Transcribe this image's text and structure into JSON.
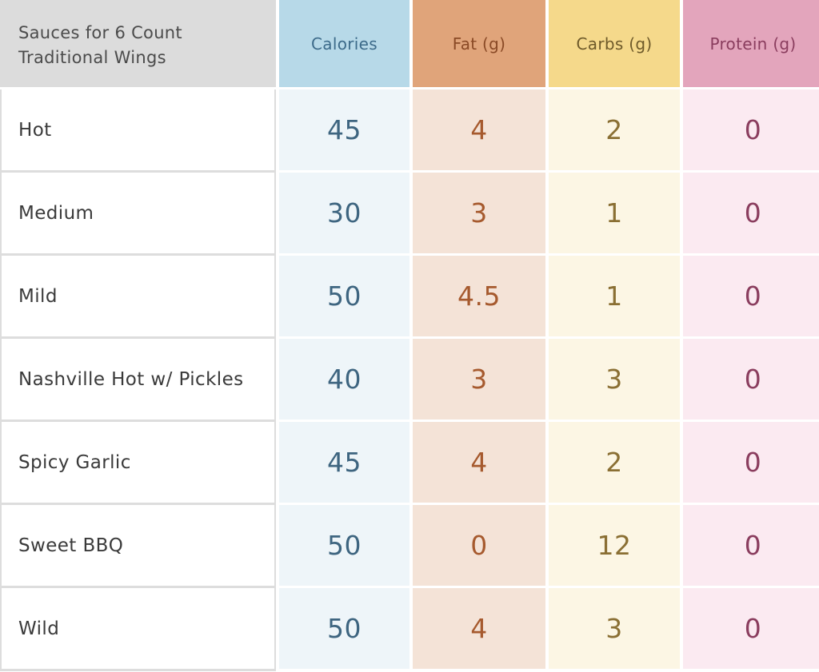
{
  "table": {
    "headers": {
      "sauce": "Sauces for 6 Count Traditional Wings",
      "calories": "Calories",
      "fat": "Fat (g)",
      "carbs": "Carbs (g)",
      "protein": "Protein (g)"
    },
    "colors": {
      "calories_header": "#b7d9e8",
      "fat_header": "#e0a47a",
      "carbs_header": "#f5d98b",
      "protein_header": "#e3a5bc",
      "sauce_header": "#dcdcdc"
    },
    "rows": [
      {
        "sauce": "Hot",
        "calories": "45",
        "fat": "4",
        "carbs": "2",
        "protein": "0"
      },
      {
        "sauce": "Medium",
        "calories": "30",
        "fat": "3",
        "carbs": "1",
        "protein": "0"
      },
      {
        "sauce": "Mild",
        "calories": "50",
        "fat": "4.5",
        "carbs": "1",
        "protein": "0"
      },
      {
        "sauce": "Nashville Hot w/ Pickles",
        "calories": "40",
        "fat": "3",
        "carbs": "3",
        "protein": "0"
      },
      {
        "sauce": "Spicy Garlic",
        "calories": "45",
        "fat": "4",
        "carbs": "2",
        "protein": "0"
      },
      {
        "sauce": "Sweet BBQ",
        "calories": "50",
        "fat": "0",
        "carbs": "12",
        "protein": "0"
      },
      {
        "sauce": "Wild",
        "calories": "50",
        "fat": "4",
        "carbs": "3",
        "protein": "0"
      }
    ]
  }
}
